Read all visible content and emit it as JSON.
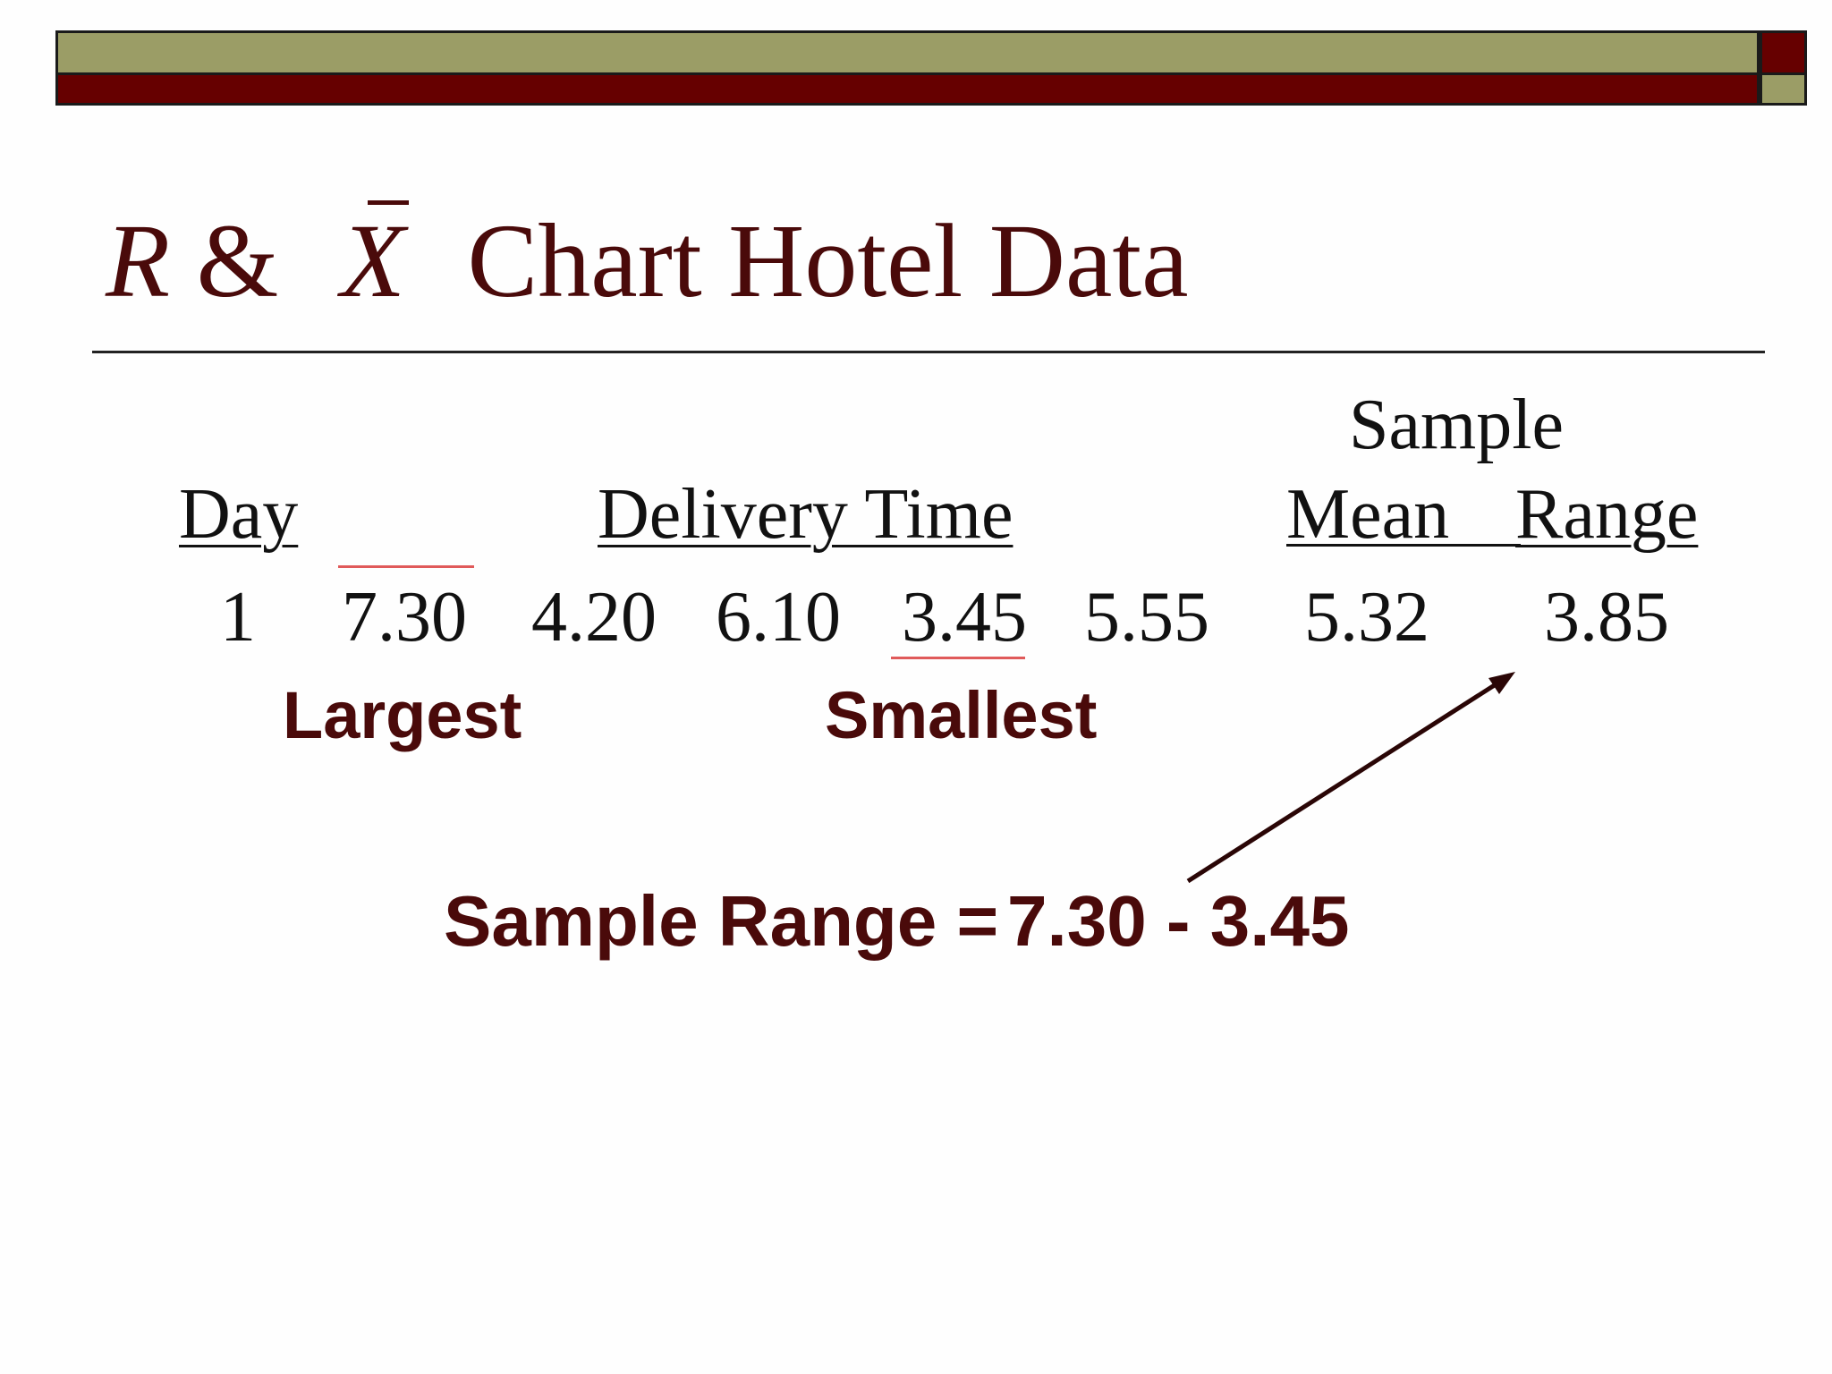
{
  "slide": {
    "title": {
      "var_r": "R",
      "amp": "&",
      "var_x": "X",
      "rest": "Chart Hotel Data"
    },
    "table": {
      "header_sample": "Sample",
      "col_day": "Day",
      "col_delivery": "Delivery Time",
      "col_mean": "Mean",
      "col_range": "Range",
      "row": {
        "day": "1",
        "times": [
          "7.30",
          "4.20",
          "6.10",
          "3.45",
          "5.55"
        ],
        "mean": "5.32",
        "range": "3.85"
      }
    },
    "labels": {
      "largest": "Largest",
      "smallest": "Smallest"
    },
    "formula": {
      "label": "Sample Range =",
      "expression": "7.30 - 3.45"
    },
    "colors": {
      "accent_red": "#660000",
      "accent_olive": "#9b9d66",
      "text_dark_red": "#4a0a0a",
      "marker_red": "#e05a5a"
    }
  }
}
